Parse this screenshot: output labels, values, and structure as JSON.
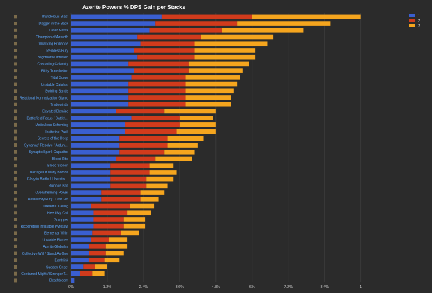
{
  "chart_data": {
    "type": "bar",
    "orientation": "horizontal",
    "stacked": true,
    "title": "Azerite Powers % DPS Gain per Stacks",
    "categories": [
      "Thunderous Blast",
      "Dagger in the Back",
      "Laser Matrix",
      "Champion of Azeroth",
      "Wracking Brilliance",
      "Reckless Fury",
      "Blightborne Infusion",
      "Cascading Calamity",
      "Filthy Transfusion",
      "Tidal Surge",
      "Unstable Catalyst",
      "Swirling Sands",
      "Relational Normalization Gizmo",
      "Tradewinds",
      "Elevated Demise",
      "Battlefield Focus / Battlef...",
      "Meticulous Scheming",
      "Incite the Pack",
      "Secrets of the Deep",
      "Sylvanas' Resolve / Ardun'...",
      "Synaptic Spark Capacitor",
      "Blood Rite",
      "Blood Siphon",
      "Barrage Of Many Bombs",
      "Glory in Battle / Liberator...",
      "Ruinous Bolt",
      "Overwhelming Power",
      "Retaliatory Fury / Last Gift",
      "Dreadful Calling",
      "Heed My Call",
      "Gutripper",
      "Ricocheting Inflatable Pyrosaw",
      "Elemental Whirl",
      "Unstable Flames",
      "Azerite Globules",
      "Collective Will / Stand As One",
      "Earthlink",
      "Sudden Onset",
      "Contained Might / Stronger T...",
      "Deathbloom"
    ],
    "series": [
      {
        "name": "1",
        "color": "#3a5fd0",
        "values": [
          3.0,
          2.8,
          2.6,
          2.2,
          2.3,
          2.1,
          2.2,
          1.9,
          2.1,
          2.0,
          1.9,
          1.9,
          1.9,
          1.9,
          1.5,
          2.0,
          1.8,
          1.8,
          1.6,
          1.6,
          1.6,
          1.5,
          1.3,
          1.3,
          1.3,
          1.3,
          1.0,
          1.0,
          0.65,
          0.75,
          0.75,
          0.75,
          0.7,
          0.65,
          0.6,
          0.6,
          0.6,
          0.4,
          0.3,
          0.1
        ]
      },
      {
        "name": "2",
        "color": "#d13b1c",
        "values": [
          3.0,
          2.7,
          2.4,
          2.1,
          1.8,
          2.0,
          1.9,
          2.0,
          1.8,
          1.8,
          1.9,
          1.9,
          1.9,
          1.9,
          1.6,
          1.6,
          1.8,
          1.7,
          1.6,
          1.6,
          1.5,
          1.3,
          1.3,
          1.3,
          1.2,
          1.2,
          1.3,
          1.3,
          1.3,
          1.1,
          1.0,
          1.0,
          0.95,
          0.6,
          0.55,
          0.55,
          0.5,
          0.4,
          0.4,
          0.0
        ]
      },
      {
        "name": "3",
        "color": "#f5a51e",
        "values": [
          3.6,
          3.1,
          2.7,
          2.4,
          2.4,
          2.0,
          2.0,
          2.0,
          1.8,
          1.8,
          1.7,
          1.6,
          1.5,
          1.5,
          1.7,
          1.1,
          1.2,
          1.3,
          1.2,
          1.0,
          1.0,
          1.2,
          0.8,
          0.9,
          0.9,
          0.7,
          0.8,
          0.6,
          0.8,
          0.8,
          0.7,
          0.7,
          0.6,
          0.6,
          0.7,
          0.6,
          0.5,
          0.4,
          0.4,
          0.0
        ]
      }
    ],
    "x_ticks": [
      "0%",
      "1.2%",
      "2.4%",
      "3.6%",
      "4.8%",
      "6%",
      "7.2%",
      "8.4%",
      "1"
    ],
    "xlim": [
      0,
      10.8
    ],
    "legend": [
      "1",
      "2",
      "3"
    ],
    "legend_position": "top-right",
    "grid": true
  }
}
